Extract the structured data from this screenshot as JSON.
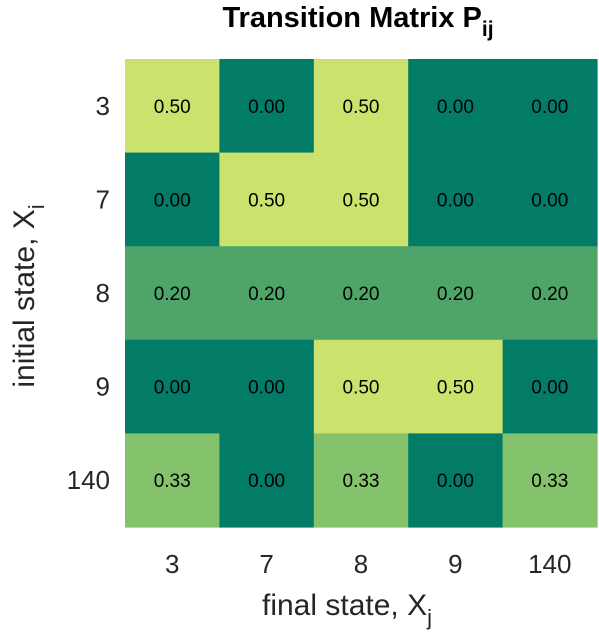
{
  "chart_data": {
    "type": "heatmap",
    "title": "Transition Matrix P",
    "title_subscript": "ij",
    "xlabel": "final state, X",
    "xlabel_subscript": "j",
    "ylabel": "initial state, X",
    "ylabel_subscript": "i",
    "x_categories": [
      "3",
      "7",
      "8",
      "9",
      "140"
    ],
    "y_categories": [
      "3",
      "7",
      "8",
      "9",
      "140"
    ],
    "values": [
      [
        0.5,
        0.0,
        0.5,
        0.0,
        0.0
      ],
      [
        0.0,
        0.5,
        0.5,
        0.0,
        0.0
      ],
      [
        0.2,
        0.2,
        0.2,
        0.2,
        0.2
      ],
      [
        0.0,
        0.0,
        0.5,
        0.5,
        0.0
      ],
      [
        0.33,
        0.0,
        0.33,
        0.0,
        0.33
      ]
    ],
    "value_labels": [
      [
        "0.50",
        "0.00",
        "0.50",
        "0.00",
        "0.00"
      ],
      [
        "0.00",
        "0.50",
        "0.50",
        "0.00",
        "0.00"
      ],
      [
        "0.20",
        "0.20",
        "0.20",
        "0.20",
        "0.20"
      ],
      [
        "0.00",
        "0.00",
        "0.50",
        "0.50",
        "0.00"
      ],
      [
        "0.33",
        "0.00",
        "0.33",
        "0.00",
        "0.33"
      ]
    ],
    "color_scale": {
      "0.00": "#027B67",
      "0.20": "#4FA569",
      "0.33": "#84C36B",
      "0.50": "#CBE26D"
    },
    "grid": false,
    "legend": "none"
  }
}
